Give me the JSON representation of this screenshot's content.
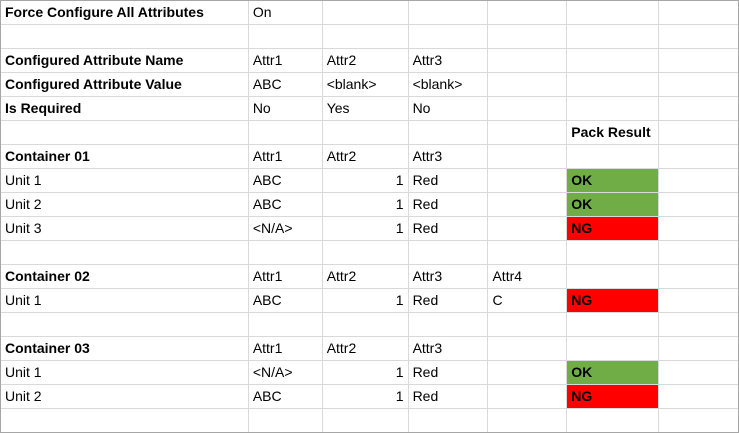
{
  "settings": {
    "force_label": "Force Configure All Attributes",
    "force_value": "On"
  },
  "config": {
    "name_label": "Configured Attribute Name",
    "names": [
      "Attr1",
      "Attr2",
      "Attr3"
    ],
    "value_label": "Configured Attribute Value",
    "values": [
      "ABC",
      "<blank>",
      "<blank>"
    ],
    "required_label": "Is Required",
    "required": [
      "No",
      "Yes",
      "No"
    ]
  },
  "pack_result_header": "Pack Result",
  "result_colors": {
    "OK": "#70ad47",
    "NG": "#ff0000"
  },
  "containers": [
    {
      "name": "Container 01",
      "headers": [
        "Attr1",
        "Attr2",
        "Attr3"
      ],
      "units": [
        {
          "name": "Unit 1",
          "attr1": "ABC",
          "attr2": "1",
          "attr3": "Red",
          "result": "OK"
        },
        {
          "name": "Unit 2",
          "attr1": "ABC",
          "attr2": "1",
          "attr3": "Red",
          "result": "OK"
        },
        {
          "name": "Unit 3",
          "attr1": "<N/A>",
          "attr2": "1",
          "attr3": "Red",
          "result": "NG"
        }
      ]
    },
    {
      "name": "Container 02",
      "headers": [
        "Attr1",
        "Attr2",
        "Attr3",
        "Attr4"
      ],
      "units": [
        {
          "name": "Unit 1",
          "attr1": "ABC",
          "attr2": "1",
          "attr3": "Red",
          "attr4": "C",
          "result": "NG"
        }
      ]
    },
    {
      "name": "Container 03",
      "headers": [
        "Attr1",
        "Attr2",
        "Attr3"
      ],
      "units": [
        {
          "name": "Unit 1",
          "attr1": "<N/A>",
          "attr2": "1",
          "attr3": "Red",
          "result": "OK"
        },
        {
          "name": "Unit 2",
          "attr1": "ABC",
          "attr2": "1",
          "attr3": "Red",
          "result": "NG"
        }
      ]
    }
  ]
}
